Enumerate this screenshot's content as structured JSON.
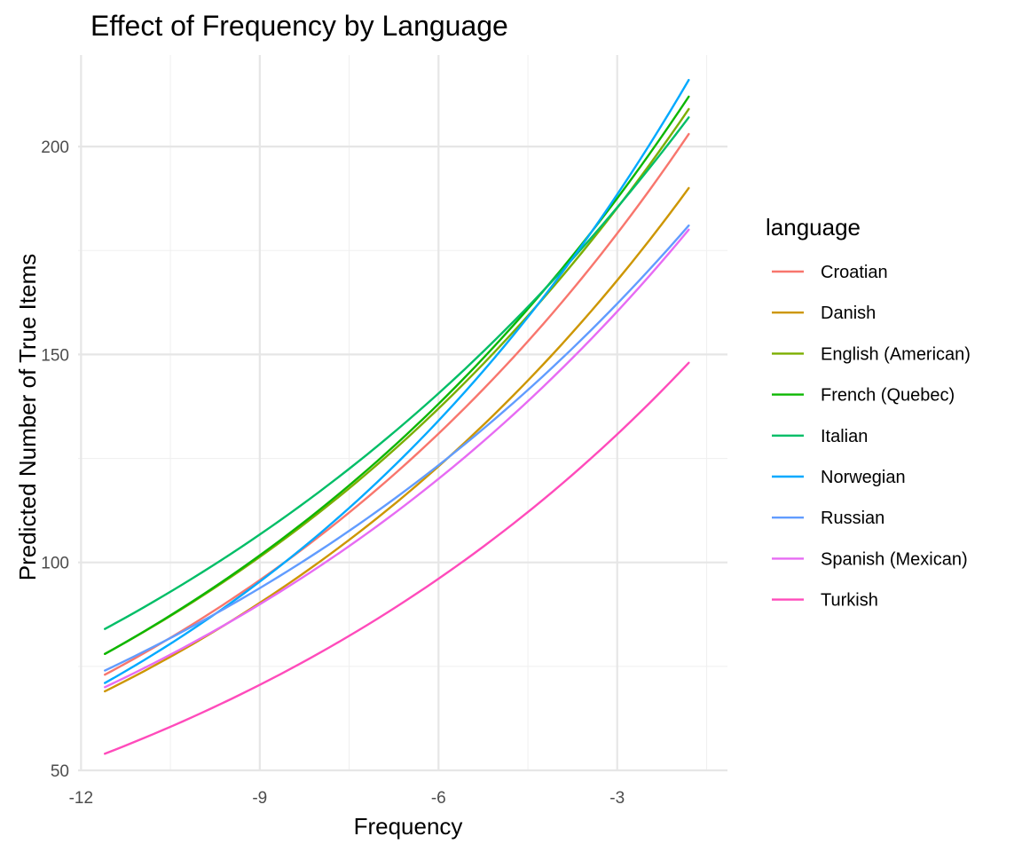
{
  "chart_data": {
    "type": "line",
    "title": "Effect of Frequency by Language",
    "xlabel": "Frequency",
    "ylabel": "Predicted Number of True Items",
    "xlim": [
      -12.05,
      -1.15
    ],
    "ylim": [
      50,
      222
    ],
    "x_ticks": [
      -12,
      -9,
      -6,
      -3
    ],
    "y_ticks": [
      50,
      100,
      150,
      200
    ],
    "grid": true,
    "legend": {
      "title": "language",
      "position": "right"
    },
    "series": [
      {
        "name": "Croatian",
        "color": "#F8766D",
        "x": [
          -11.6,
          -1.8
        ],
        "y": [
          73,
          203
        ]
      },
      {
        "name": "Danish",
        "color": "#CD9600",
        "x": [
          -11.6,
          -1.8
        ],
        "y": [
          69,
          190
        ]
      },
      {
        "name": "English (American)",
        "color": "#7CAE00",
        "x": [
          -11.6,
          -1.8
        ],
        "y": [
          78,
          209
        ]
      },
      {
        "name": "French (Quebec)",
        "color": "#0CB702",
        "x": [
          -11.6,
          -1.8
        ],
        "y": [
          78,
          212
        ]
      },
      {
        "name": "Italian",
        "color": "#00BE67",
        "x": [
          -11.6,
          -1.8
        ],
        "y": [
          84,
          207
        ]
      },
      {
        "name": "Norwegian",
        "color": "#00A9FF",
        "x": [
          -11.6,
          -1.8
        ],
        "y": [
          71,
          216
        ]
      },
      {
        "name": "Russian",
        "color": "#619CFF",
        "x": [
          -11.6,
          -1.8
        ],
        "y": [
          74,
          181
        ]
      },
      {
        "name": "Spanish (Mexican)",
        "color": "#E76BF3",
        "x": [
          -11.6,
          -1.8
        ],
        "y": [
          70,
          180
        ]
      },
      {
        "name": "Turkish",
        "color": "#FF4BBB",
        "x": [
          -11.6,
          -1.8
        ],
        "y": [
          54,
          148
        ]
      }
    ]
  }
}
